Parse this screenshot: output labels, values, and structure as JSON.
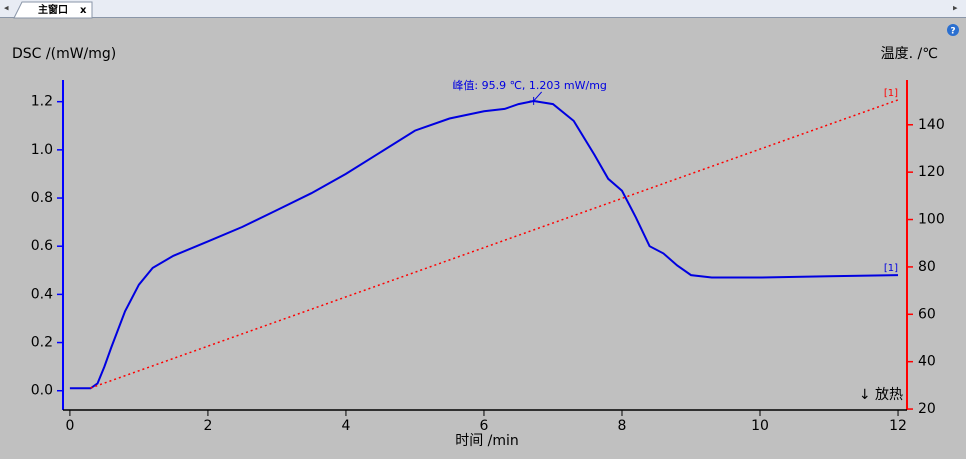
{
  "window": {
    "tab_title": "主窗口",
    "tab_close": "x"
  },
  "chart_data": {
    "type": "line",
    "y_label": "DSC /(mW/mg)",
    "y2_label": "温度. /℃",
    "x_label": "时间 /min",
    "annotation": {
      "text": "峰值: 95.9 ℃, 1.203 mW/mg",
      "x": 6.72,
      "y": 1.203
    },
    "note": "↓ 放热",
    "xlim": [
      -0.1,
      12.13
    ],
    "xticks": [
      0,
      2,
      4,
      6,
      8,
      10,
      12
    ],
    "ylim": [
      -0.08,
      1.29
    ],
    "yticks": [
      {
        "value": 0,
        "label": "0.0"
      },
      0.2,
      0.4,
      0.6,
      0.8,
      {
        "value": 1,
        "label": "1.0"
      },
      1.2
    ],
    "y2lim": [
      19.6,
      158.9
    ],
    "y2ticks": [
      20,
      40,
      60,
      80,
      100,
      120,
      140
    ],
    "y_color": "#0000ff",
    "y2_color": "#ff0000",
    "series": [
      {
        "label": "[1]",
        "color": "#0000e0",
        "line_style": "solid",
        "x": [
          0,
          0.2,
          0.3,
          0.4,
          0.5,
          0.6,
          0.8,
          1.0,
          1.2,
          1.5,
          2,
          2.5,
          3,
          3.5,
          4,
          4.5,
          5,
          5.5,
          6,
          6.3,
          6.5,
          6.72,
          7,
          7.3,
          7.6,
          7.8,
          8.0,
          8.2,
          8.4,
          8.6,
          8.8,
          9.0,
          9.3,
          10,
          11,
          12
        ],
        "values": [
          0.01,
          0.01,
          0.01,
          0.03,
          0.1,
          0.18,
          0.33,
          0.44,
          0.51,
          0.56,
          0.62,
          0.68,
          0.75,
          0.82,
          0.9,
          0.99,
          1.08,
          1.13,
          1.16,
          1.17,
          1.19,
          1.203,
          1.19,
          1.12,
          0.98,
          0.88,
          0.83,
          0.72,
          0.6,
          0.57,
          0.52,
          0.48,
          0.47,
          0.47,
          0.475,
          0.48
        ]
      },
      {
        "label": "[1]",
        "color": "#ff0000",
        "line_style": "dotted",
        "axis": "y2",
        "x": [
          0.3,
          12
        ],
        "values": [
          28.9,
          150.5
        ]
      }
    ]
  }
}
